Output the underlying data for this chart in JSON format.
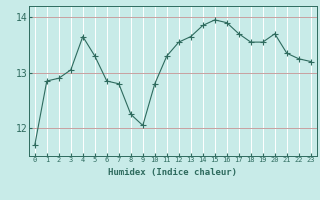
{
  "x": [
    0,
    1,
    2,
    3,
    4,
    5,
    6,
    7,
    8,
    9,
    10,
    11,
    12,
    13,
    14,
    15,
    16,
    17,
    18,
    19,
    20,
    21,
    22,
    23
  ],
  "y": [
    11.7,
    12.85,
    12.9,
    13.05,
    13.65,
    13.3,
    12.85,
    12.8,
    12.25,
    12.05,
    12.8,
    13.3,
    13.55,
    13.65,
    13.85,
    13.95,
    13.9,
    13.7,
    13.55,
    13.55,
    13.7,
    13.35,
    13.25,
    13.2
  ],
  "line_color": "#2e6b5e",
  "marker": "+",
  "marker_size": 4,
  "bg_color": "#c8ebe8",
  "grid_color_h": "#d4a0a0",
  "grid_color_v": "#ffffff",
  "xlabel": "Humidex (Indice chaleur)",
  "ylim": [
    11.5,
    14.2
  ],
  "yticks": [
    12,
    13,
    14
  ],
  "xlim": [
    -0.5,
    23.5
  ],
  "tick_color": "#2e6b5e",
  "label_color": "#2e6b5e"
}
